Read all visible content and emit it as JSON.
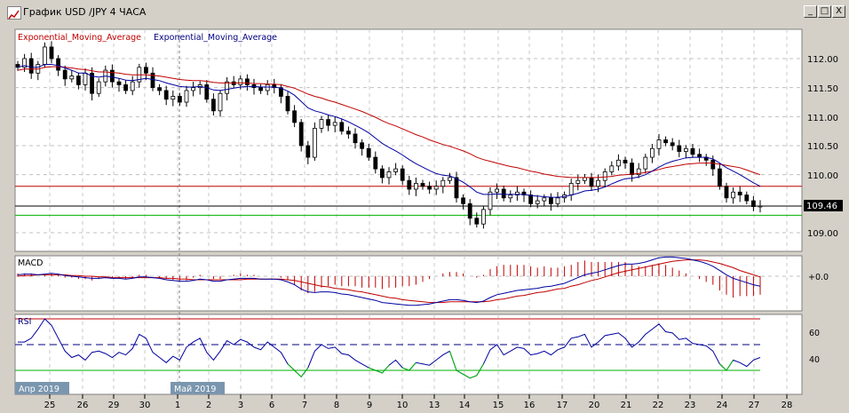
{
  "window": {
    "title": "График USD /JPY  4 ЧАСА",
    "buttons": {
      "minimize": "_",
      "maximize": "□",
      "close": "X"
    }
  },
  "legend": {
    "ema_red": "Exponential_Moving_Average",
    "ema_blue": "Exponential_Moving_Average"
  },
  "price_axis": {
    "labels": [
      "112.00",
      "111.50",
      "111.00",
      "110.50",
      "110.00",
      "109.00"
    ],
    "current": "109.46"
  },
  "macd": {
    "title": "MACD",
    "label": "+0.0"
  },
  "rsi": {
    "title": "RSI",
    "labels": [
      "60",
      "40"
    ]
  },
  "time_axis": {
    "day_labels": [
      "25",
      "26",
      "29",
      "30",
      "1",
      "2",
      "3",
      "6",
      "7",
      "8",
      "9",
      "10",
      "13",
      "14",
      "15",
      "16",
      "17",
      "20",
      "21",
      "22",
      "23",
      "24",
      "27",
      "28"
    ],
    "month_labels": [
      "Апр 2019",
      "Май 2019"
    ]
  },
  "chart_data": {
    "type": "candlestick",
    "price_range": [
      108.75,
      112.45
    ],
    "levels": {
      "resistance_red": 109.8,
      "current_black": 109.46,
      "support_green": 109.3
    },
    "close": [
      111.85,
      112.0,
      111.75,
      111.9,
      112.2,
      112.0,
      111.8,
      111.65,
      111.7,
      111.55,
      111.75,
      111.4,
      111.6,
      111.8,
      111.6,
      111.55,
      111.45,
      111.6,
      111.85,
      111.75,
      111.5,
      111.45,
      111.3,
      111.35,
      111.25,
      111.45,
      111.5,
      111.55,
      111.3,
      111.1,
      111.4,
      111.6,
      111.55,
      111.65,
      111.55,
      111.5,
      111.45,
      111.55,
      111.5,
      111.35,
      111.1,
      110.9,
      110.5,
      110.3,
      110.8,
      110.95,
      110.85,
      110.9,
      110.75,
      110.7,
      110.55,
      110.45,
      110.3,
      110.1,
      109.95,
      110.05,
      110.1,
      109.9,
      109.75,
      109.85,
      109.8,
      109.75,
      109.8,
      109.9,
      109.95,
      109.6,
      109.5,
      109.25,
      109.15,
      109.4,
      109.7,
      109.75,
      109.6,
      109.65,
      109.7,
      109.65,
      109.5,
      109.55,
      109.6,
      109.5,
      109.6,
      109.65,
      109.85,
      109.9,
      109.95,
      109.8,
      109.9,
      110.05,
      110.15,
      110.25,
      110.2,
      110.0,
      110.1,
      110.3,
      110.45,
      110.6,
      110.55,
      110.5,
      110.4,
      110.45,
      110.35,
      110.3,
      110.25,
      110.1,
      109.8,
      109.6,
      109.7,
      109.65,
      109.55,
      109.45,
      109.46
    ],
    "ema_fast_blue": [
      111.85,
      111.88,
      111.85,
      111.85,
      111.9,
      111.9,
      111.88,
      111.84,
      111.8,
      111.75,
      111.75,
      111.7,
      111.68,
      111.7,
      111.68,
      111.66,
      111.63,
      111.62,
      111.64,
      111.66,
      111.64,
      111.62,
      111.58,
      111.55,
      111.52,
      111.51,
      111.51,
      111.52,
      111.5,
      111.46,
      111.45,
      111.47,
      111.49,
      111.51,
      111.52,
      111.52,
      111.51,
      111.51,
      111.51,
      111.49,
      111.44,
      111.37,
      111.26,
      111.15,
      111.1,
      111.07,
      111.03,
      111.0,
      110.96,
      110.91,
      110.85,
      110.79,
      110.72,
      110.63,
      110.54,
      110.47,
      110.41,
      110.34,
      110.26,
      110.19,
      110.13,
      110.07,
      110.02,
      109.99,
      109.98,
      109.93,
      109.87,
      109.79,
      109.7,
      109.66,
      109.66,
      109.67,
      109.66,
      109.66,
      109.66,
      109.66,
      109.64,
      109.63,
      109.62,
      109.61,
      109.61,
      109.62,
      109.65,
      109.68,
      109.72,
      109.73,
      109.75,
      109.79,
      109.84,
      109.89,
      109.93,
      109.94,
      109.96,
      110.0,
      110.06,
      110.13,
      110.19,
      110.23,
      110.26,
      110.29,
      110.3,
      110.3,
      110.3,
      110.27,
      110.2,
      110.12,
      110.06,
      110.0,
      109.93,
      109.86,
      109.8
    ],
    "ema_slow_red": [
      111.8,
      111.82,
      111.82,
      111.82,
      111.85,
      111.86,
      111.86,
      111.85,
      111.84,
      111.82,
      111.81,
      111.79,
      111.77,
      111.77,
      111.76,
      111.75,
      111.73,
      111.72,
      111.72,
      111.72,
      111.71,
      111.7,
      111.68,
      111.66,
      111.64,
      111.63,
      111.62,
      111.62,
      111.61,
      111.59,
      111.58,
      111.58,
      111.58,
      111.58,
      111.58,
      111.57,
      111.57,
      111.56,
      111.56,
      111.55,
      111.52,
      111.49,
      111.44,
      111.39,
      111.35,
      111.32,
      111.28,
      111.25,
      111.21,
      111.17,
      111.13,
      111.09,
      111.04,
      110.99,
      110.93,
      110.88,
      110.84,
      110.79,
      110.74,
      110.69,
      110.65,
      110.6,
      110.56,
      110.52,
      110.49,
      110.45,
      110.41,
      110.36,
      110.3,
      110.26,
      110.23,
      110.2,
      110.17,
      110.14,
      110.12,
      110.09,
      110.06,
      110.04,
      110.01,
      109.99,
      109.97,
      109.96,
      109.95,
      109.95,
      109.95,
      109.95,
      109.95,
      109.96,
      109.97,
      109.99,
      110.0,
      110.01,
      110.02,
      110.04,
      110.06,
      110.09,
      110.12,
      110.14,
      110.16,
      110.18,
      110.19,
      110.2,
      110.2,
      110.2,
      110.18,
      110.16,
      110.14,
      110.12,
      110.08,
      110.04,
      110.0
    ],
    "macd_line": [
      0.02,
      0.03,
      0.03,
      0.02,
      0.03,
      0.04,
      0.03,
      0.01,
      0.0,
      -0.01,
      -0.02,
      -0.03,
      -0.03,
      -0.02,
      -0.03,
      -0.03,
      -0.04,
      -0.03,
      -0.01,
      -0.01,
      -0.02,
      -0.03,
      -0.05,
      -0.06,
      -0.07,
      -0.07,
      -0.06,
      -0.04,
      -0.05,
      -0.07,
      -0.07,
      -0.05,
      -0.04,
      -0.03,
      -0.03,
      -0.03,
      -0.04,
      -0.04,
      -0.04,
      -0.05,
      -0.08,
      -0.12,
      -0.18,
      -0.22,
      -0.23,
      -0.22,
      -0.22,
      -0.23,
      -0.25,
      -0.26,
      -0.28,
      -0.3,
      -0.32,
      -0.34,
      -0.37,
      -0.38,
      -0.39,
      -0.4,
      -0.41,
      -0.41,
      -0.4,
      -0.39,
      -0.37,
      -0.35,
      -0.33,
      -0.33,
      -0.34,
      -0.36,
      -0.37,
      -0.35,
      -0.3,
      -0.26,
      -0.24,
      -0.22,
      -0.2,
      -0.19,
      -0.18,
      -0.17,
      -0.15,
      -0.14,
      -0.12,
      -0.1,
      -0.06,
      -0.02,
      0.02,
      0.04,
      0.06,
      0.09,
      0.12,
      0.15,
      0.17,
      0.17,
      0.18,
      0.2,
      0.23,
      0.26,
      0.27,
      0.27,
      0.26,
      0.25,
      0.23,
      0.21,
      0.18,
      0.14,
      0.08,
      0.02,
      -0.03,
      -0.06,
      -0.09,
      -0.12,
      -0.14
    ],
    "macd_signal": [
      0.0,
      0.01,
      0.01,
      0.02,
      0.02,
      0.02,
      0.02,
      0.02,
      0.01,
      0.01,
      0.0,
      0.0,
      -0.01,
      -0.01,
      -0.02,
      -0.02,
      -0.02,
      -0.02,
      -0.02,
      -0.02,
      -0.02,
      -0.02,
      -0.03,
      -0.03,
      -0.04,
      -0.04,
      -0.05,
      -0.05,
      -0.05,
      -0.05,
      -0.05,
      -0.05,
      -0.05,
      -0.05,
      -0.04,
      -0.04,
      -0.04,
      -0.04,
      -0.04,
      -0.04,
      -0.05,
      -0.06,
      -0.08,
      -0.1,
      -0.12,
      -0.14,
      -0.15,
      -0.17,
      -0.18,
      -0.19,
      -0.21,
      -0.22,
      -0.24,
      -0.26,
      -0.28,
      -0.3,
      -0.31,
      -0.33,
      -0.34,
      -0.35,
      -0.36,
      -0.37,
      -0.37,
      -0.37,
      -0.36,
      -0.36,
      -0.36,
      -0.36,
      -0.36,
      -0.36,
      -0.35,
      -0.33,
      -0.32,
      -0.3,
      -0.28,
      -0.27,
      -0.25,
      -0.23,
      -0.22,
      -0.2,
      -0.18,
      -0.17,
      -0.14,
      -0.12,
      -0.09,
      -0.06,
      -0.04,
      -0.01,
      0.02,
      0.05,
      0.07,
      0.09,
      0.11,
      0.13,
      0.15,
      0.17,
      0.19,
      0.21,
      0.22,
      0.23,
      0.23,
      0.23,
      0.22,
      0.2,
      0.18,
      0.15,
      0.12,
      0.08,
      0.05,
      0.02,
      -0.01
    ],
    "rsi": [
      52,
      52,
      55,
      62,
      70,
      65,
      55,
      45,
      40,
      42,
      38,
      44,
      45,
      43,
      40,
      44,
      42,
      47,
      58,
      55,
      44,
      40,
      36,
      41,
      38,
      48,
      52,
      55,
      44,
      38,
      45,
      53,
      50,
      54,
      52,
      48,
      46,
      52,
      48,
      44,
      35,
      30,
      25,
      32,
      45,
      50,
      47,
      48,
      43,
      42,
      38,
      35,
      32,
      30,
      28,
      34,
      38,
      32,
      30,
      36,
      35,
      34,
      38,
      42,
      45,
      30,
      27,
      24,
      26,
      35,
      46,
      50,
      42,
      45,
      48,
      47,
      42,
      43,
      45,
      42,
      46,
      48,
      55,
      56,
      58,
      48,
      52,
      57,
      58,
      59,
      55,
      48,
      52,
      58,
      62,
      66,
      60,
      59,
      54,
      55,
      51,
      50,
      49,
      45,
      35,
      30,
      38,
      36,
      33,
      38,
      40
    ],
    "rsi_levels": {
      "upper": 70,
      "middle": 50,
      "lower": 30
    }
  }
}
